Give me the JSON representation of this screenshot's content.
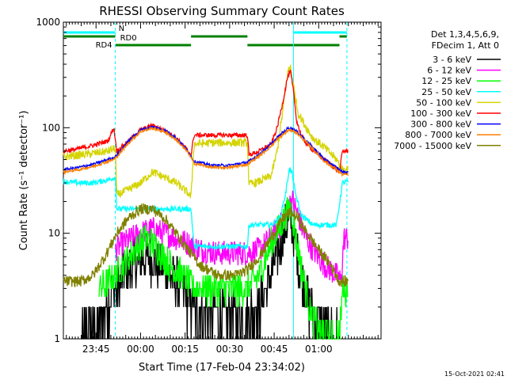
{
  "chart_data": {
    "type": "line",
    "title": "RHESSI Observing Summary Count Rates",
    "xlabel": "Start Time (17-Feb-04 23:34:02)",
    "ylabel": "Count Rate (s⁻¹ detector⁻¹)",
    "ylog": true,
    "ylim": [
      1,
      1000
    ],
    "xlim_minutes": [
      0,
      107
    ],
    "x_ticks": [
      {
        "t": 11,
        "label": "23:45"
      },
      {
        "t": 26,
        "label": "00:00"
      },
      {
        "t": 41,
        "label": "00:15"
      },
      {
        "t": 56,
        "label": "00:30"
      },
      {
        "t": 71,
        "label": "00:45"
      },
      {
        "t": 86,
        "label": "01:00"
      }
    ],
    "y_ticks": [
      {
        "v": 1,
        "label": "1"
      },
      {
        "v": 10,
        "label": "10"
      },
      {
        "v": 100,
        "label": "100"
      },
      {
        "v": 1000,
        "label": "1000"
      }
    ],
    "legend_header": [
      "Det 1,3,4,5,6,9,",
      "FDecim 1, Att 0"
    ],
    "timestamp": "15-Oct-2021 02:41",
    "flags": [
      {
        "name": "N",
        "color": "#00ffff",
        "segments": [
          [
            0,
            17.5
          ],
          [
            77.5,
            95.5
          ]
        ]
      },
      {
        "name": "RD0",
        "color": "#008000",
        "segments": [
          [
            0,
            17.5
          ],
          [
            43,
            62
          ],
          [
            93,
            95.5
          ]
        ]
      },
      {
        "name": "RD4",
        "color": "#008000",
        "segments": [
          [
            17.5,
            43
          ],
          [
            62,
            93
          ]
        ]
      }
    ],
    "series": [
      {
        "name": "3 - 6 keV",
        "color": "#000000",
        "style": "black",
        "x": [
          6,
          12,
          16,
          20,
          24,
          28,
          32,
          36,
          40,
          44,
          50,
          56,
          62,
          66,
          70,
          73,
          75,
          76.5,
          78,
          80,
          83,
          86,
          90,
          93
        ],
        "y": [
          1,
          1.5,
          2.5,
          4,
          5,
          6,
          5,
          4,
          3,
          2,
          1.7,
          1.7,
          1.7,
          2,
          4,
          8,
          12,
          14,
          8,
          4,
          2,
          1.5,
          1,
          1
        ]
      },
      {
        "name": "6 - 12 keV",
        "color": "#ff00ff",
        "style": "magenta",
        "x": [
          0,
          12,
          17.5,
          20,
          26,
          30,
          34,
          38,
          42,
          46,
          52,
          58,
          62,
          66,
          70,
          74,
          76,
          77,
          79,
          81,
          84,
          88,
          92,
          93.5,
          94.5,
          96
        ],
        "y": [
          null,
          null,
          7,
          8,
          10,
          11,
          10,
          9,
          8,
          7,
          6.5,
          6.5,
          6.5,
          7,
          9,
          13,
          18,
          21,
          15,
          10,
          7,
          5,
          4,
          3.5,
          9,
          9
        ]
      },
      {
        "name": "12 - 25 keV",
        "color": "#00ff00",
        "style": "green",
        "x": [
          0,
          6,
          12,
          17.5,
          20,
          24,
          28,
          32,
          36,
          40,
          44,
          50,
          56,
          62,
          66,
          70,
          74,
          76,
          77,
          78,
          80,
          83,
          86,
          90,
          93,
          94,
          96
        ],
        "y": [
          null,
          null,
          3,
          4,
          5,
          7,
          9,
          7,
          5,
          4,
          3,
          3,
          3,
          3,
          4,
          8,
          13,
          17,
          16,
          10,
          5,
          2,
          1.2,
          1,
          1,
          3,
          3
        ]
      },
      {
        "name": "25 - 50 keV",
        "color": "#00ffff",
        "style": "cyan",
        "x": [
          0,
          5,
          10,
          15,
          17.5,
          18,
          24,
          30,
          34,
          40,
          43,
          44,
          50,
          56,
          62,
          62.5,
          66,
          70,
          73,
          75,
          76,
          77,
          78,
          80,
          84,
          88,
          92,
          94,
          96
        ],
        "y": [
          31,
          30,
          30,
          32,
          34,
          17,
          17,
          17,
          17,
          17,
          17,
          7.5,
          7.5,
          7.5,
          7.5,
          12,
          12,
          12,
          14,
          25,
          40,
          38,
          25,
          15,
          12,
          12,
          12,
          30,
          31
        ]
      },
      {
        "name": "50 - 100 keV",
        "color": "#d4d400",
        "style": "yellow",
        "x": [
          0,
          5,
          10,
          15,
          17.5,
          18,
          22,
          26,
          30,
          34,
          38,
          42,
          43,
          44,
          50,
          56,
          62,
          62.5,
          66,
          70,
          72,
          74,
          75.5,
          76.5,
          77.5,
          79,
          81,
          84,
          88,
          92,
          94,
          96
        ],
        "y": [
          53,
          55,
          57,
          60,
          64,
          23,
          26,
          30,
          38,
          34,
          30,
          24,
          22,
          70,
          72,
          72,
          72,
          29,
          31,
          35,
          60,
          150,
          330,
          380,
          250,
          140,
          110,
          80,
          65,
          50,
          40,
          40
        ]
      },
      {
        "name": "100 - 300 keV",
        "color": "#ff0000",
        "style": "red",
        "x": [
          0,
          5,
          10,
          15,
          17,
          18,
          22,
          26,
          30,
          34,
          38,
          42,
          43,
          44,
          50,
          56,
          62,
          62.5,
          66,
          70,
          72,
          74,
          75.5,
          76.5,
          77.5,
          78.5,
          80,
          82,
          86,
          90,
          93,
          94,
          96
        ],
        "y": [
          60,
          63,
          68,
          75,
          100,
          60,
          75,
          95,
          105,
          95,
          80,
          60,
          55,
          85,
          85,
          85,
          85,
          55,
          60,
          70,
          100,
          180,
          300,
          340,
          220,
          120,
          85,
          70,
          55,
          45,
          38,
          60,
          60
        ]
      },
      {
        "name": "300 - 800 keV",
        "color": "#0000ff",
        "style": "blue",
        "x": [
          0,
          5,
          10,
          15,
          17,
          18,
          22,
          26,
          30,
          34,
          38,
          42,
          44,
          50,
          56,
          62,
          66,
          70,
          72,
          74,
          75.5,
          76.5,
          78,
          80,
          84,
          88,
          92,
          94,
          96
        ],
        "y": [
          40,
          42,
          45,
          50,
          52,
          55,
          75,
          95,
          102,
          95,
          80,
          60,
          48,
          44,
          44,
          47,
          56,
          70,
          80,
          90,
          98,
          100,
          95,
          85,
          65,
          50,
          42,
          38,
          38
        ]
      },
      {
        "name": "800 - 7000 keV",
        "color": "#ff7f00",
        "style": "orange",
        "x": [
          0,
          5,
          10,
          15,
          17,
          18,
          22,
          26,
          30,
          34,
          38,
          42,
          44,
          50,
          56,
          62,
          66,
          70,
          72,
          74,
          75.5,
          76.5,
          78,
          80,
          84,
          88,
          92,
          94,
          96
        ],
        "y": [
          38,
          40,
          43,
          48,
          50,
          53,
          72,
          92,
          99,
          92,
          77,
          58,
          46,
          42,
          42,
          45,
          54,
          67,
          77,
          86,
          93,
          95,
          92,
          82,
          63,
          48,
          40,
          36,
          36
        ]
      },
      {
        "name": "7000 - 15000 keV",
        "color": "#808000",
        "style": "olive",
        "x": [
          0,
          6,
          10,
          14,
          18,
          22,
          26,
          30,
          34,
          38,
          42,
          46,
          52,
          58,
          62,
          66,
          70,
          74,
          76.5,
          79,
          82,
          86,
          90,
          93,
          94.5,
          96
        ],
        "y": [
          3.5,
          3.5,
          4,
          6,
          10,
          14,
          17,
          17,
          14,
          10,
          7,
          5,
          4,
          4,
          4.5,
          6,
          9,
          14,
          16,
          14,
          10,
          7,
          5,
          3.5,
          3.5,
          3.5
        ]
      }
    ],
    "grid": false,
    "legend_position": "right"
  }
}
